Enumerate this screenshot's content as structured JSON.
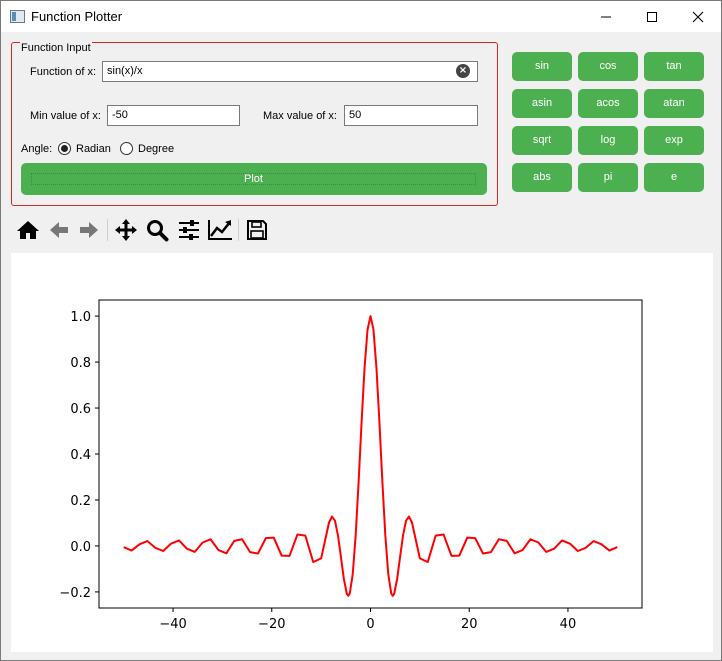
{
  "window": {
    "title": "Function Plotter"
  },
  "input_group": {
    "title": "Function Input",
    "function_label": "Function of x:",
    "function_value": "sin(x)/x",
    "min_label": "Min value of x:",
    "min_value": "-50",
    "max_label": "Max value of x:",
    "max_value": "50",
    "angle_label": "Angle:",
    "radian_label": "Radian",
    "degree_label": "Degree",
    "angle_selected": "Radian",
    "plot_label": "Plot"
  },
  "function_buttons": [
    {
      "label": "sin"
    },
    {
      "label": "cos"
    },
    {
      "label": "tan"
    },
    {
      "label": "asin"
    },
    {
      "label": "acos"
    },
    {
      "label": "atan"
    },
    {
      "label": "sqrt"
    },
    {
      "label": "log"
    },
    {
      "label": "exp"
    },
    {
      "label": "abs"
    },
    {
      "label": "pi"
    },
    {
      "label": "e"
    }
  ],
  "toolbar": {
    "icons": [
      "home-icon",
      "back-arrow-icon",
      "forward-arrow-icon",
      "pan-icon",
      "zoom-icon",
      "subplots-config-icon",
      "axes-edit-icon",
      "save-icon"
    ]
  },
  "colors": {
    "button_green": "#4caf50",
    "group_border": "#d9262b",
    "plot_line": "#ff0000"
  },
  "chart_data": {
    "type": "line",
    "title": "",
    "xlabel": "",
    "ylabel": "",
    "xlim": [
      -55,
      55
    ],
    "ylim": [
      -0.27,
      1.07
    ],
    "x_ticks": [
      -40,
      -20,
      0,
      20,
      40
    ],
    "x_tick_labels": [
      "−40",
      "−20",
      "0",
      "20",
      "40"
    ],
    "y_ticks": [
      -0.2,
      0.0,
      0.2,
      0.4,
      0.6,
      0.8,
      1.0
    ],
    "y_tick_labels": [
      "−0.2",
      "0.0",
      "0.2",
      "0.4",
      "0.6",
      "0.8",
      "1.0"
    ],
    "grid": false,
    "series": [
      {
        "color": "#ff0000",
        "x": [
          -50,
          -48.4,
          -46.8,
          -45.2,
          -43.6,
          -42,
          -40.4,
          -38.8,
          -37.2,
          -35.6,
          -34,
          -32.4,
          -30.8,
          -29.2,
          -27.6,
          -26,
          -24.4,
          -22.8,
          -21.2,
          -19.6,
          -18,
          -16.4,
          -14.8,
          -13.2,
          -11.6,
          -10,
          -8.4,
          -7.8,
          -7.2,
          -6.6,
          -6,
          -5.4,
          -4.8,
          -4.5,
          -4.2,
          -3.6,
          -3,
          -2.4,
          -1.8,
          -1.2,
          -0.6,
          0,
          0.6,
          1.2,
          1.8,
          2.4,
          3,
          3.6,
          4.2,
          4.5,
          4.8,
          5.4,
          6,
          6.6,
          7.2,
          7.8,
          8.4,
          10,
          11.6,
          13.2,
          14.8,
          16.4,
          18,
          19.6,
          21.2,
          22.8,
          24.4,
          26,
          27.6,
          29.2,
          30.8,
          32.4,
          34,
          35.6,
          37.2,
          38.8,
          40.4,
          42,
          43.6,
          45.2,
          46.8,
          48.4,
          50
        ],
        "y": [
          -0.005,
          -0.02,
          0.007,
          0.021,
          -0.008,
          -0.022,
          0.01,
          0.024,
          -0.012,
          -0.026,
          0.015,
          0.029,
          -0.018,
          -0.032,
          0.022,
          0.029,
          -0.027,
          -0.033,
          0.034,
          0.036,
          -0.042,
          -0.043,
          0.05,
          0.045,
          -0.07,
          -0.054,
          0.102,
          0.128,
          0.11,
          0.047,
          -0.047,
          -0.143,
          -0.208,
          -0.217,
          -0.207,
          -0.123,
          0.047,
          0.281,
          0.541,
          0.777,
          0.941,
          1.0,
          0.941,
          0.777,
          0.541,
          0.281,
          0.047,
          -0.123,
          -0.207,
          -0.217,
          -0.208,
          -0.143,
          -0.047,
          0.047,
          0.11,
          0.128,
          0.102,
          -0.054,
          -0.07,
          0.045,
          0.05,
          -0.043,
          -0.042,
          0.036,
          0.034,
          -0.033,
          -0.027,
          0.029,
          0.022,
          -0.032,
          -0.018,
          0.029,
          0.015,
          -0.026,
          -0.012,
          0.024,
          0.01,
          -0.022,
          -0.008,
          0.021,
          0.007,
          -0.02,
          -0.005
        ]
      }
    ]
  }
}
